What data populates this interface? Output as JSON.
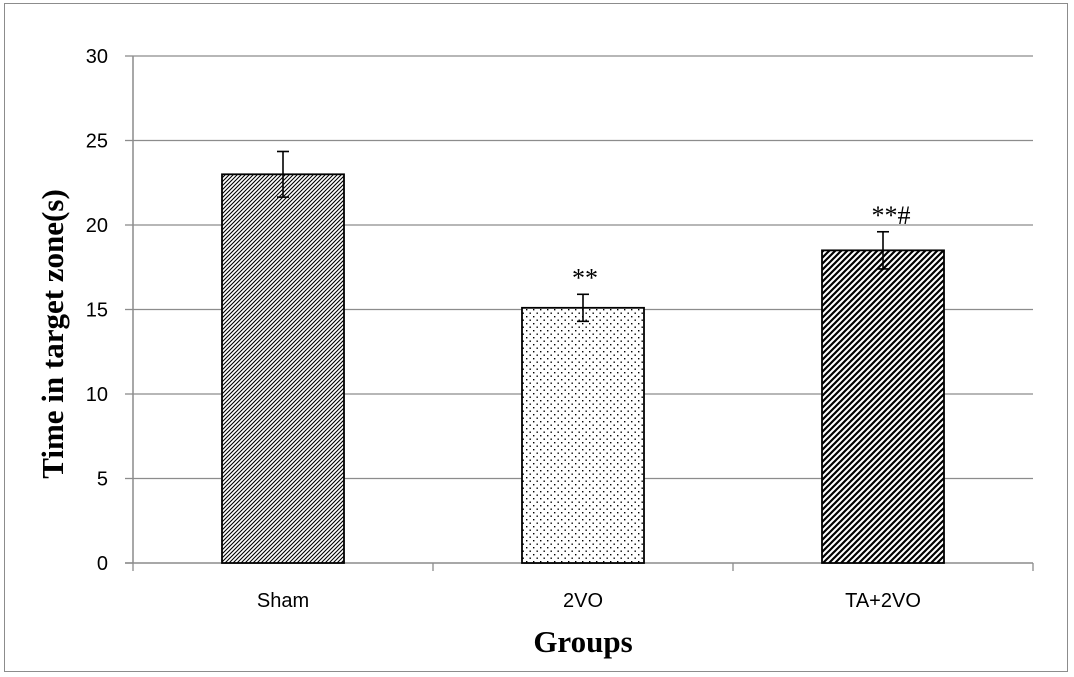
{
  "chart_data": {
    "type": "bar",
    "title": "",
    "xlabel": "Groups",
    "ylabel": "Time in target zone(s)",
    "ylim": [
      0,
      30
    ],
    "yticks": [
      0,
      5,
      10,
      15,
      20,
      25,
      30
    ],
    "grid": true,
    "categories": [
      "Sham",
      "2VO",
      "TA+2VO"
    ],
    "values": [
      23.0,
      15.1,
      18.5
    ],
    "errors": [
      1.35,
      0.8,
      1.1
    ],
    "annotations": [
      "",
      "**",
      "**#"
    ],
    "patterns": [
      "diagonal-hatch",
      "dots",
      "dense-diagonal-hatch"
    ]
  }
}
